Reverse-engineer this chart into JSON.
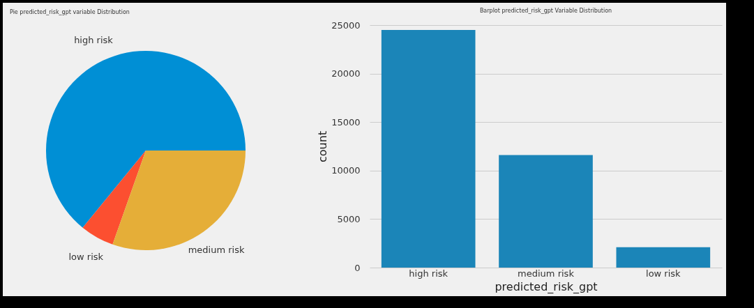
{
  "chart_data": [
    {
      "type": "pie",
      "title": "Pie predicted_risk_gpt variable Distribution",
      "categories": [
        "high risk",
        "low risk",
        "medium risk"
      ],
      "values": [
        64.1,
        5.5,
        30.4
      ],
      "colors": [
        "#008fd5",
        "#fc4f30",
        "#e5ae38"
      ]
    },
    {
      "type": "bar",
      "title": "Barplot predicted_risk_gpt Variable Distribution",
      "categories": [
        "high risk",
        "medium risk",
        "low risk"
      ],
      "values": [
        24500,
        11600,
        2100
      ],
      "color": "#1b85b8",
      "xlabel": "predicted_risk_gpt",
      "ylabel": "count",
      "ylim": [
        0,
        25000
      ],
      "yticks": [
        0,
        5000,
        10000,
        15000,
        20000,
        25000
      ],
      "grid": "y"
    }
  ]
}
